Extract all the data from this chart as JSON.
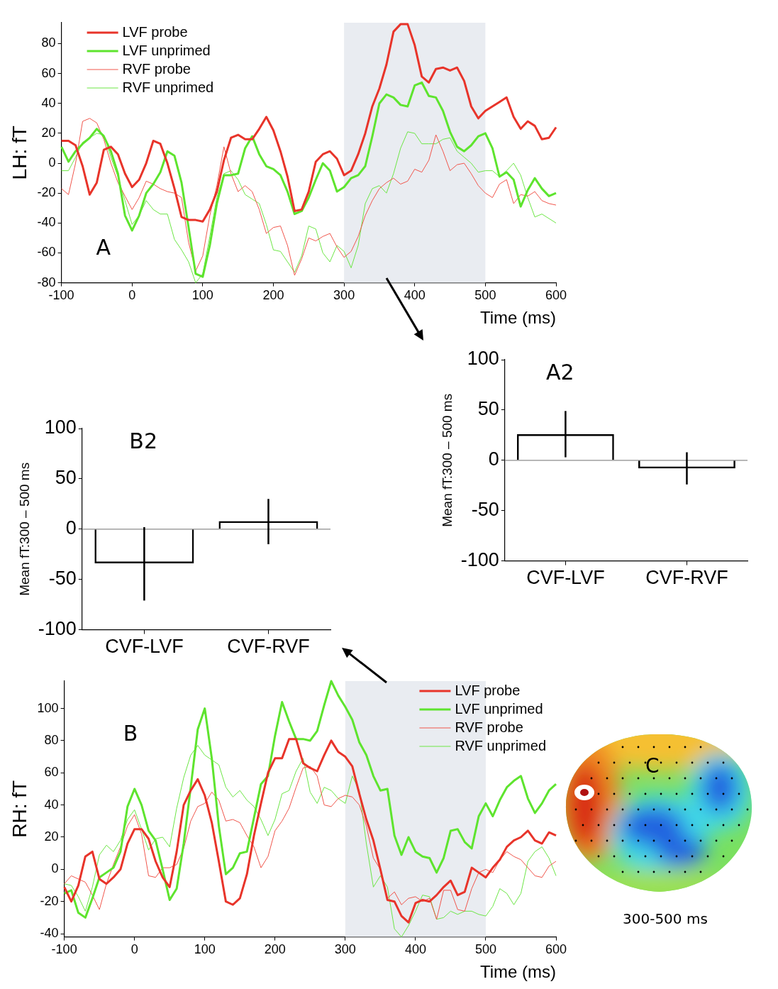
{
  "chart_data": [
    {
      "type": "line",
      "ylabel": "LH: fT",
      "xlabel": "Time (ms)",
      "legend": "top left",
      "grid": false,
      "annotations": [
        "A"
      ],
      "xlim": [
        -100,
        600
      ],
      "xticks": [
        -100,
        0,
        100,
        200,
        300,
        400,
        500,
        600
      ],
      "ylim": [
        -80,
        94
      ],
      "yticks": [
        -80,
        -60,
        -40,
        -20,
        0,
        20,
        40,
        60,
        80
      ],
      "bands": [
        {
          "axis": "x",
          "from": 300,
          "to": 500,
          "color": "#e9ecf1"
        }
      ],
      "x": [
        -100,
        -90,
        -80,
        -70,
        -60,
        -50,
        -40,
        -30,
        -20,
        -10,
        0,
        10,
        20,
        30,
        40,
        50,
        60,
        70,
        80,
        90,
        100,
        110,
        120,
        130,
        140,
        150,
        160,
        170,
        180,
        190,
        200,
        210,
        220,
        230,
        240,
        250,
        260,
        270,
        280,
        290,
        300,
        310,
        320,
        330,
        340,
        350,
        360,
        370,
        380,
        390,
        400,
        410,
        420,
        430,
        440,
        450,
        460,
        470,
        480,
        490,
        500,
        510,
        520,
        530,
        540,
        550,
        560,
        570,
        580,
        590,
        600
      ],
      "series": [
        {
          "name": "LVF probe",
          "color": "#e8342a",
          "values": [
            15,
            15,
            12,
            -2,
            -21,
            -13,
            9,
            11,
            6,
            -7,
            -16,
            -11,
            0,
            15,
            13,
            0,
            -17,
            -36,
            -38,
            -38,
            -39,
            -31,
            -19,
            2,
            17,
            19,
            16,
            16,
            23,
            31,
            22,
            8,
            -9,
            -32,
            -31,
            -19,
            1,
            6,
            8,
            3,
            -8,
            -5,
            6,
            20,
            38,
            50,
            66,
            88,
            93,
            93,
            79,
            58,
            54,
            63,
            64,
            62,
            64,
            55,
            38,
            30,
            35,
            38,
            41,
            44,
            31,
            23,
            28,
            25,
            16,
            17,
            24
          ]
        },
        {
          "name": "LVF unprimed",
          "color": "#5ee42e",
          "values": [
            11,
            1,
            8,
            13,
            17,
            23,
            18,
            8,
            -7,
            -35,
            -45,
            -35,
            -20,
            -14,
            -6,
            8,
            5,
            -13,
            -43,
            -74,
            -76,
            -55,
            -27,
            -8,
            -8,
            -7,
            10,
            18,
            6,
            -2,
            -4,
            -8,
            -19,
            -34,
            -32,
            -23,
            -11,
            0,
            -5,
            -19,
            -16,
            -10,
            -8,
            -2,
            18,
            40,
            46,
            44,
            39,
            38,
            52,
            54,
            45,
            44,
            35,
            21,
            11,
            8,
            12,
            18,
            20,
            10,
            -9,
            -6,
            -11,
            -29,
            -18,
            -10,
            -17,
            -22,
            -20
          ]
        },
        {
          "name": "RVF probe",
          "color": "#f0564c",
          "values": [
            -17,
            -21,
            0,
            28,
            30,
            27,
            16,
            0,
            -13,
            -22,
            -31,
            -23,
            -12,
            -14,
            -17,
            -19,
            -20,
            -23,
            -53,
            -72,
            -62,
            -35,
            -15,
            11,
            -7,
            -19,
            -15,
            -19,
            -31,
            -47,
            -43,
            -42,
            -55,
            -75,
            -64,
            -50,
            -52,
            -49,
            -47,
            -56,
            -63,
            -59,
            -49,
            -35,
            -25,
            -17,
            -13,
            -10,
            -14,
            -12,
            -4,
            -6,
            2,
            19,
            8,
            -5,
            -1,
            0,
            -7,
            -15,
            -20,
            -23,
            -14,
            -11,
            -27,
            -21,
            -22,
            -19,
            -25,
            -27,
            -28
          ]
        },
        {
          "name": "RVF unprimed",
          "color": "#6ce645",
          "values": [
            -5,
            -5,
            4,
            14,
            17,
            20,
            19,
            4,
            -9,
            -25,
            -41,
            -35,
            -25,
            -31,
            -34,
            -34,
            -51,
            -58,
            -66,
            -80,
            -74,
            -49,
            -23,
            -7,
            -5,
            -11,
            -21,
            -24,
            -27,
            -41,
            -58,
            -59,
            -66,
            -73,
            -62,
            -42,
            -44,
            -60,
            -66,
            -55,
            -59,
            -70,
            -55,
            -27,
            -17,
            -15,
            -20,
            -7,
            10,
            21,
            20,
            13,
            13,
            13,
            16,
            17,
            8,
            4,
            0,
            -6,
            -5,
            -5,
            -9,
            -5,
            0,
            -8,
            -23,
            -36,
            -34,
            -37,
            -40
          ]
        }
      ]
    },
    {
      "type": "bar",
      "ylabel": "Mean fT:300 – 500 ms",
      "annotations": [
        "A2"
      ],
      "categories": [
        "CVF-LVF",
        "CVF-RVF"
      ],
      "values": [
        26,
        -8
      ],
      "errors": [
        [
          3,
          49
        ],
        [
          -24,
          8
        ]
      ],
      "color": "#000000",
      "ylim": [
        -100,
        100
      ],
      "yticks": [
        -100,
        -50,
        0,
        50,
        100
      ],
      "ref_lines": [
        {
          "axis": "y",
          "value": 0,
          "color": "#8c8c8c"
        }
      ]
    },
    {
      "type": "bar",
      "ylabel": "Mean fT:300 – 500 ms",
      "annotations": [
        "B2"
      ],
      "categories": [
        "CVF-LVF",
        "CVF-RVF"
      ],
      "values": [
        -34,
        8
      ],
      "errors": [
        [
          -71,
          2
        ],
        [
          -15,
          30
        ]
      ],
      "color": "#000000",
      "ylim": [
        -100,
        100
      ],
      "yticks": [
        -100,
        -50,
        0,
        50,
        100
      ],
      "ref_lines": [
        {
          "axis": "y",
          "value": 0,
          "color": "#8c8c8c"
        }
      ]
    },
    {
      "type": "line",
      "ylabel": "RH: fT",
      "xlabel": "Time (ms)",
      "legend": "top right",
      "grid": false,
      "annotations": [
        "B"
      ],
      "xlim": [
        -100,
        600
      ],
      "xticks": [
        -100,
        0,
        100,
        200,
        300,
        400,
        500,
        600
      ],
      "ylim": [
        -42,
        117
      ],
      "yticks": [
        -40,
        -20,
        0,
        20,
        40,
        60,
        80,
        100
      ],
      "bands": [
        {
          "axis": "x",
          "from": 300,
          "to": 500,
          "color": "#e9ecf1"
        }
      ],
      "x": [
        -100,
        -90,
        -80,
        -70,
        -60,
        -50,
        -40,
        -30,
        -20,
        -10,
        0,
        10,
        20,
        30,
        40,
        50,
        60,
        70,
        80,
        90,
        100,
        110,
        120,
        130,
        140,
        150,
        160,
        170,
        180,
        190,
        200,
        210,
        220,
        230,
        240,
        250,
        260,
        270,
        280,
        290,
        300,
        310,
        320,
        330,
        340,
        350,
        360,
        370,
        380,
        390,
        400,
        410,
        420,
        430,
        440,
        450,
        460,
        470,
        480,
        490,
        500,
        510,
        520,
        530,
        540,
        550,
        560,
        570,
        580,
        590,
        600
      ],
      "series": [
        {
          "name": "LVF probe",
          "color": "#e8342a",
          "values": [
            -11,
            -20,
            -10,
            8,
            11,
            -6,
            -9,
            -5,
            0,
            16,
            25,
            25,
            19,
            5,
            -5,
            -11,
            11,
            40,
            49,
            56,
            46,
            29,
            5,
            -20,
            -22,
            -18,
            -3,
            21,
            41,
            60,
            69,
            69,
            81,
            81,
            66,
            63,
            61,
            71,
            80,
            73,
            70,
            64,
            47,
            31,
            18,
            0,
            -19,
            -20,
            -29,
            -33,
            -21,
            -19,
            -20,
            -16,
            -11,
            -7,
            -16,
            -14,
            1,
            -2,
            -5,
            1,
            6,
            14,
            18,
            20,
            24,
            18,
            16,
            23,
            21
          ]
        },
        {
          "name": "LVF unprimed",
          "color": "#5ee42e",
          "values": [
            -15,
            -13,
            -27,
            -30,
            -18,
            -5,
            -2,
            1,
            11,
            39,
            50,
            40,
            24,
            18,
            0,
            -19,
            -12,
            16,
            51,
            87,
            100,
            69,
            27,
            -3,
            1,
            10,
            11,
            32,
            53,
            58,
            83,
            104,
            92,
            81,
            81,
            80,
            86,
            102,
            117,
            108,
            101,
            93,
            79,
            71,
            58,
            49,
            50,
            21,
            9,
            20,
            11,
            8,
            7,
            -2,
            7,
            24,
            25,
            17,
            13,
            33,
            41,
            33,
            43,
            51,
            55,
            58,
            44,
            35,
            41,
            49,
            53
          ]
        },
        {
          "name": "RVF probe",
          "color": "#f0564c",
          "values": [
            -9,
            -4,
            -6,
            -8,
            -16,
            -25,
            -9,
            3,
            14,
            27,
            34,
            22,
            -4,
            -5,
            1,
            1,
            3,
            13,
            30,
            39,
            41,
            48,
            43,
            30,
            31,
            29,
            21,
            14,
            1,
            8,
            24,
            30,
            38,
            51,
            63,
            64,
            58,
            40,
            39,
            44,
            46,
            45,
            40,
            27,
            7,
            0,
            -18,
            -14,
            -22,
            -18,
            -17,
            -20,
            -18,
            -31,
            -13,
            -13,
            -25,
            -26,
            -12,
            -2,
            0,
            -2,
            6,
            11,
            8,
            6,
            1,
            -4,
            -5,
            2,
            5
          ]
        },
        {
          "name": "RVF unprimed",
          "color": "#6ce645",
          "values": [
            -9,
            -10,
            -17,
            -26,
            -11,
            9,
            15,
            11,
            18,
            31,
            37,
            25,
            12,
            19,
            20,
            14,
            38,
            57,
            71,
            77,
            71,
            68,
            65,
            51,
            45,
            49,
            43,
            39,
            31,
            21,
            31,
            47,
            49,
            61,
            69,
            48,
            41,
            51,
            49,
            44,
            41,
            58,
            49,
            16,
            -11,
            -4,
            -11,
            -37,
            -42,
            -35,
            -26,
            -16,
            -17,
            -31,
            -30,
            -26,
            -28,
            -26,
            -26,
            -28,
            -29,
            -23,
            -12,
            -15,
            -22,
            -15,
            5,
            11,
            14,
            7,
            -4
          ]
        }
      ]
    },
    {
      "type": "other",
      "annotations": [
        "C",
        "300-500 ms"
      ]
    }
  ]
}
